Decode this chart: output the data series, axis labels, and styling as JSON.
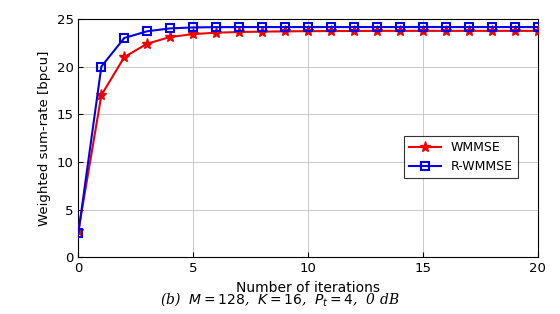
{
  "wmmse_x": [
    0,
    1,
    2,
    3,
    4,
    5,
    6,
    7,
    8,
    9,
    10,
    11,
    12,
    13,
    14,
    15,
    16,
    17,
    18,
    19,
    20
  ],
  "wmmse_y": [
    2.8,
    17.0,
    21.0,
    22.4,
    23.1,
    23.4,
    23.55,
    23.62,
    23.66,
    23.69,
    23.71,
    23.72,
    23.73,
    23.74,
    23.74,
    23.74,
    23.74,
    23.74,
    23.74,
    23.74,
    23.74
  ],
  "rwmmse_x": [
    0,
    1,
    2,
    3,
    4,
    5,
    6,
    7,
    8,
    9,
    10,
    11,
    12,
    13,
    14,
    15,
    16,
    17,
    18,
    19,
    20
  ],
  "rwmmse_y": [
    2.6,
    20.0,
    23.0,
    23.7,
    24.0,
    24.1,
    24.13,
    24.14,
    24.14,
    24.14,
    24.14,
    24.14,
    24.14,
    24.14,
    24.14,
    24.14,
    24.14,
    24.14,
    24.14,
    24.14,
    24.14
  ],
  "wmmse_color": "#ee0000",
  "rwmmse_color": "#0000ee",
  "xlabel": "Number of iterations",
  "ylabel": "Weighted sum-rate [bpcu]",
  "xlim": [
    0,
    20
  ],
  "ylim": [
    0,
    25
  ],
  "xticks": [
    0,
    5,
    10,
    15,
    20
  ],
  "yticks": [
    0,
    5,
    10,
    15,
    20,
    25
  ],
  "legend_wmmse": "WMMSE",
  "legend_rwmmse": "R-WMMSE",
  "caption": "(b)  $M = 128$,  $K = 16$,  $P_t = 4$,  0 dB",
  "background_color": "#ffffff",
  "grid_color": "#c0c0c0",
  "figwidth": 5.6,
  "figheight": 3.14,
  "dpi": 100
}
